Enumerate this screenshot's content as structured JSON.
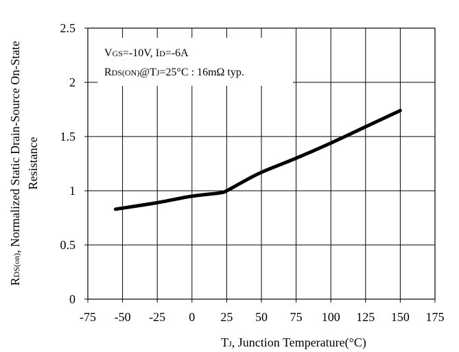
{
  "chart_data": {
    "type": "line",
    "title": "",
    "xlabel": {
      "main": "T",
      "sub": "J",
      "rest": ", Junction Temperature(°C)"
    },
    "ylabel": {
      "line1_main": "R",
      "line1_sub": "DS(on)",
      "line1_rest": ", Normalized Static Drain-Source On-State",
      "line2": "Resistance"
    },
    "annotation": {
      "line1": [
        {
          "t": "V",
          "small": false
        },
        {
          "t": "GS",
          "small": true
        },
        {
          "t": "=-10V, I",
          "small": false
        },
        {
          "t": "D",
          "small": true
        },
        {
          "t": "=-6A",
          "small": false
        }
      ],
      "line2": [
        {
          "t": "R",
          "small": false
        },
        {
          "t": "DS(ON)",
          "small": true
        },
        {
          "t": "@T",
          "small": false
        },
        {
          "t": "J",
          "small": true
        },
        {
          "t": "=25°C : 16mΩ  typ.",
          "small": false
        }
      ]
    },
    "xlim": [
      -75,
      175
    ],
    "ylim": [
      0,
      2.5
    ],
    "xticks": [
      -75,
      -50,
      -25,
      0,
      25,
      50,
      75,
      100,
      125,
      150,
      175
    ],
    "yticks": [
      0,
      0.5,
      1,
      1.5,
      2,
      2.5
    ],
    "ytick_labels": [
      "0",
      "0.5",
      "1",
      "1.5",
      "2",
      "2.5"
    ],
    "grid": true,
    "series": [
      {
        "name": "",
        "x": [
          -55,
          -25,
          0,
          20,
          25,
          35,
          50,
          75,
          100,
          125,
          150
        ],
        "y": [
          0.83,
          0.89,
          0.95,
          0.98,
          1.0,
          1.07,
          1.17,
          1.3,
          1.44,
          1.59,
          1.74
        ]
      }
    ]
  }
}
